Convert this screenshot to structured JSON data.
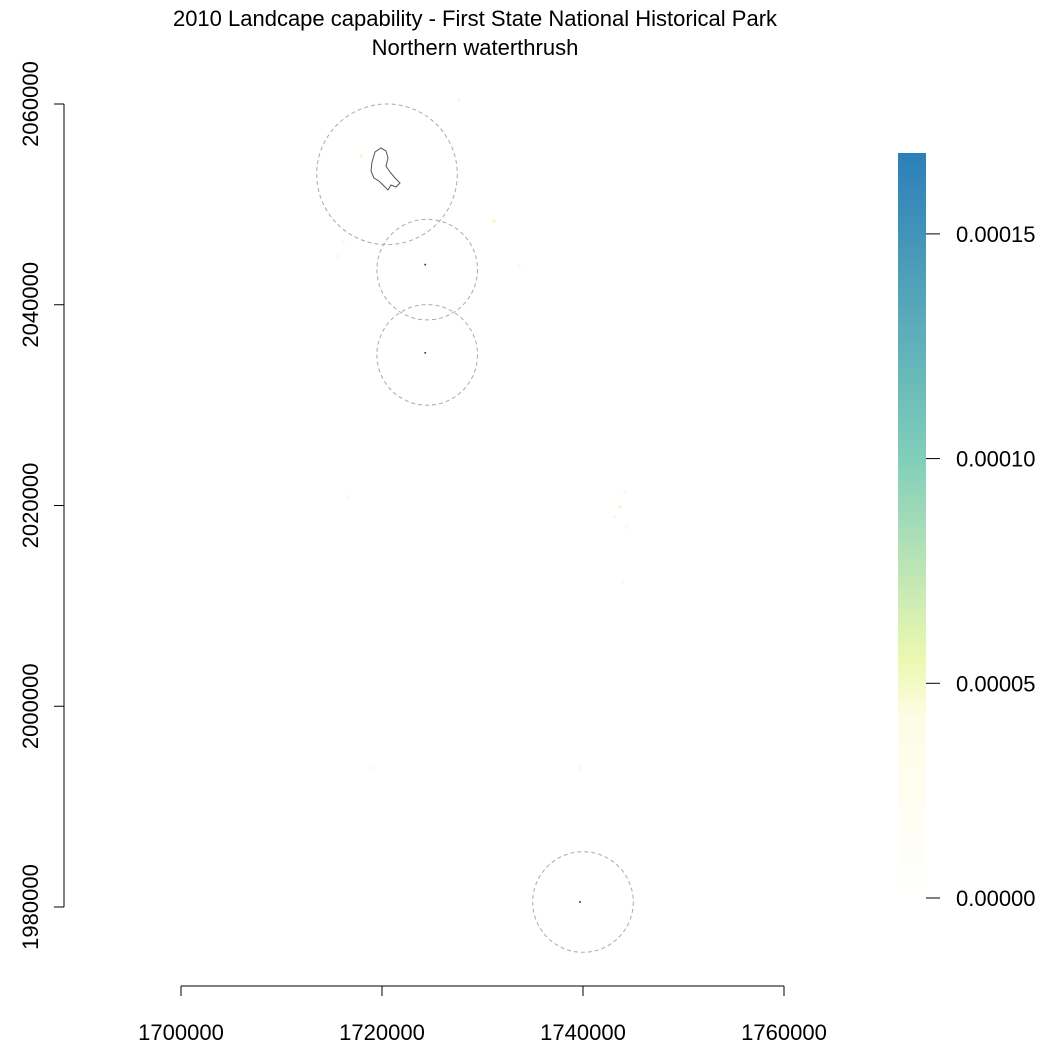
{
  "title": {
    "line1": "2010 Landcape capability - First State National Historical Park",
    "line2": "Northern waterthrush"
  },
  "map": {
    "type": "raster-map",
    "x_ticks": [
      1700000,
      1720000,
      1740000,
      1760000
    ],
    "x_tick_labels": [
      "1700000",
      "1720000",
      "1740000",
      "1760000"
    ],
    "y_ticks": [
      1980000,
      2000000,
      2020000,
      2040000,
      2060000
    ],
    "y_tick_labels": [
      "1980000",
      "2000000",
      "2020000",
      "2040000",
      "2060000"
    ],
    "buffers": [
      {
        "name": "north-buffer",
        "cx": 1720500,
        "cy": 2053000,
        "r": 7000
      },
      {
        "name": "middle-buffer",
        "cx": 1724500,
        "cy": 2043500,
        "r": 5000
      },
      {
        "name": "south-buffer",
        "cx": 1724500,
        "cy": 2035000,
        "r": 5000
      },
      {
        "name": "far-south-buffer",
        "cx": 1740000,
        "cy": 1980500,
        "r": 5000
      }
    ],
    "site_points": [
      {
        "x": 1724300,
        "y": 2044000
      },
      {
        "x": 1724300,
        "y": 2035200
      },
      {
        "x": 1739700,
        "y": 1980500
      }
    ],
    "speckles": [
      {
        "x": 1716000,
        "y": 2046500,
        "v": 2e-05
      },
      {
        "x": 1715500,
        "y": 2045000,
        "v": 1.5e-05
      },
      {
        "x": 1731000,
        "y": 2048500,
        "v": 3e-05
      },
      {
        "x": 1733500,
        "y": 2044000,
        "v": 1e-05
      },
      {
        "x": 1743500,
        "y": 2020000,
        "v": 3e-05
      },
      {
        "x": 1744000,
        "y": 2021500,
        "v": 2e-05
      },
      {
        "x": 1743000,
        "y": 2019000,
        "v": 2.5e-05
      },
      {
        "x": 1744200,
        "y": 2018000,
        "v": 1.5e-05
      },
      {
        "x": 1716500,
        "y": 2021000,
        "v": 1e-05
      },
      {
        "x": 1719000,
        "y": 1994000,
        "v": 1.5e-05
      },
      {
        "x": 1739500,
        "y": 1994000,
        "v": 2e-05
      },
      {
        "x": 1717800,
        "y": 2055000,
        "v": 3e-05
      },
      {
        "x": 1727500,
        "y": 2060500,
        "v": 1e-05
      },
      {
        "x": 1743800,
        "y": 2012500,
        "v": 1e-05
      }
    ]
  },
  "legend": {
    "ticks": [
      0.0,
      5e-05,
      0.0001,
      0.00015
    ],
    "tick_labels": [
      "0.00000",
      "0.00005",
      "0.00010",
      "0.00015"
    ],
    "max_value": 0.000168,
    "colors": [
      "#ffffe5",
      "#edf8b1",
      "#7fcdbb",
      "#2c7fb8"
    ]
  }
}
